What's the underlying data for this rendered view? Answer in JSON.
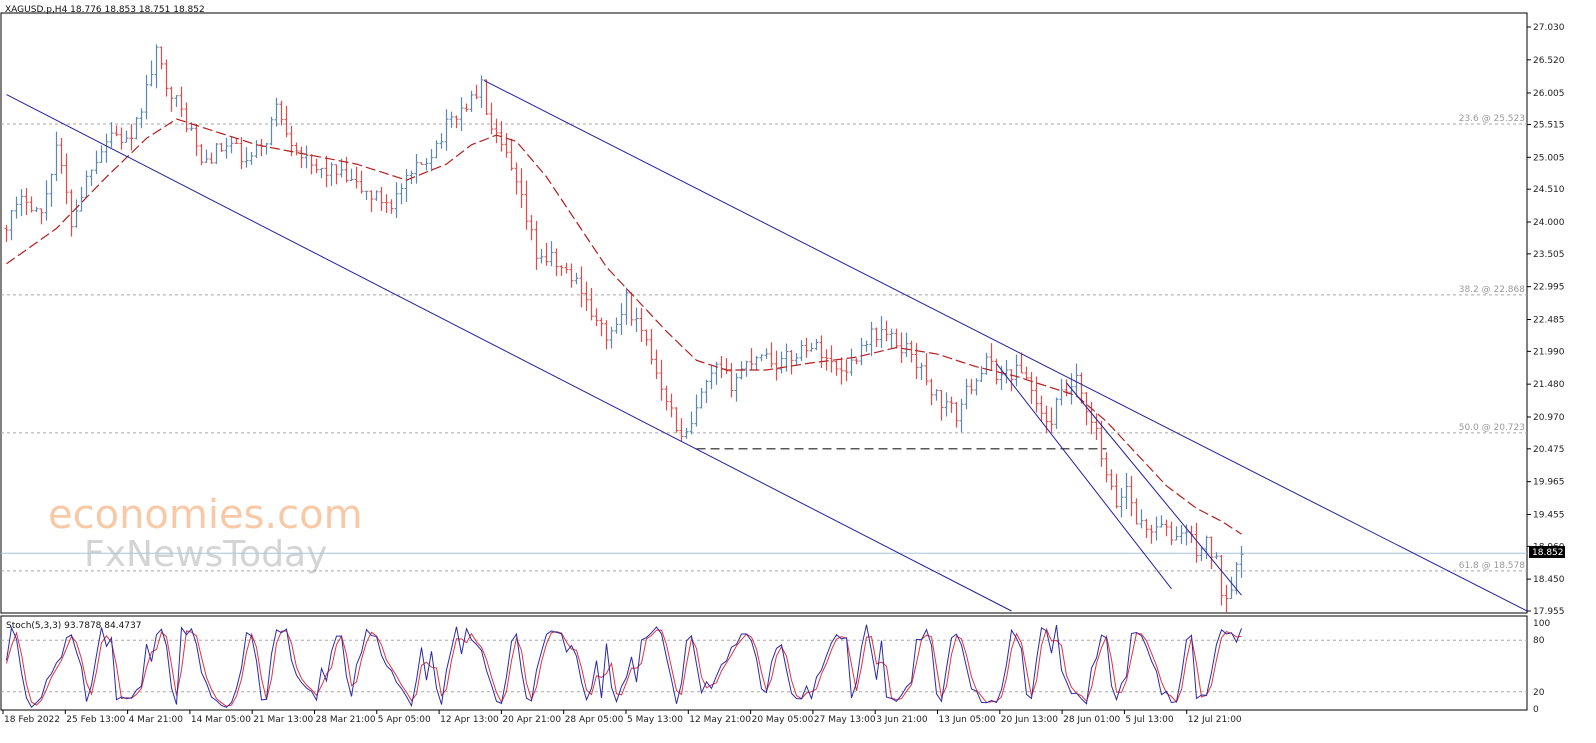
{
  "chart_data": {
    "type": "candlestick",
    "symbol_header": "XAGUSD.p,H4  18.776 18.853 18.751 18.852",
    "symbol": "XAGUSD.p",
    "timeframe": "H4",
    "ohlc_last": {
      "open": 18.776,
      "high": 18.853,
      "low": 18.751,
      "close": 18.852
    },
    "current_price_label": "18.852",
    "current_price": 18.852,
    "price_axis": {
      "ylim": [
        17.955,
        27.03
      ],
      "ticks": [
        "27.030",
        "26.520",
        "26.005",
        "25.515",
        "25.005",
        "24.510",
        "24.000",
        "23.505",
        "22.995",
        "22.485",
        "21.990",
        "21.480",
        "20.970",
        "20.475",
        "19.965",
        "19.455",
        "18.960",
        "18.450",
        "17.955"
      ]
    },
    "time_axis": {
      "ticks": [
        "18 Feb 2022",
        "25 Feb 13:00",
        "4 Mar 21:00",
        "14 Mar 05:00",
        "21 Mar 13:00",
        "28 Mar 21:00",
        "5 Apr 05:00",
        "12 Apr 13:00",
        "20 Apr 21:00",
        "28 Apr 05:00",
        "5 May 13:00",
        "12 May 21:00",
        "20 May 05:00",
        "27 May 13:00",
        "3 Jun 21:00",
        "13 Jun 05:00",
        "20 Jun 13:00",
        "28 Jun 01:00",
        "5 Jul 13:00",
        "12 Jul 21:00"
      ]
    },
    "fibonacci_levels": [
      {
        "label": "23.6 @ 25.523",
        "price": 25.523
      },
      {
        "label": "38.2 @ 22.868",
        "price": 22.868
      },
      {
        "label": "50.0 @ 20.723",
        "price": 20.723
      },
      {
        "label": "61.8 @ 18.578",
        "price": 18.578
      }
    ],
    "support_level": 20.475,
    "price_waypoints": [
      [
        0,
        23.9
      ],
      [
        5,
        24.4
      ],
      [
        8,
        24.1
      ],
      [
        11,
        25.2
      ],
      [
        14,
        24.0
      ],
      [
        18,
        24.9
      ],
      [
        22,
        25.4
      ],
      [
        26,
        25.2
      ],
      [
        28,
        25.8
      ],
      [
        31,
        26.6
      ],
      [
        33,
        26.2
      ],
      [
        36,
        25.7
      ],
      [
        38,
        25.4
      ],
      [
        40,
        24.9
      ],
      [
        43,
        25.1
      ],
      [
        46,
        25.2
      ],
      [
        49,
        24.9
      ],
      [
        53,
        25.3
      ],
      [
        55,
        25.8
      ],
      [
        58,
        25.3
      ],
      [
        62,
        24.8
      ],
      [
        66,
        24.8
      ],
      [
        70,
        24.6
      ],
      [
        74,
        24.4
      ],
      [
        78,
        24.3
      ],
      [
        82,
        24.7
      ],
      [
        86,
        25.1
      ],
      [
        90,
        25.6
      ],
      [
        94,
        25.9
      ],
      [
        96,
        26.1
      ],
      [
        98,
        25.4
      ],
      [
        101,
        25.0
      ],
      [
        104,
        24.3
      ],
      [
        107,
        23.5
      ],
      [
        110,
        23.4
      ],
      [
        113,
        23.2
      ],
      [
        116,
        23.0
      ],
      [
        119,
        22.4
      ],
      [
        122,
        22.2
      ],
      [
        125,
        22.8
      ],
      [
        127,
        22.4
      ],
      [
        130,
        21.9
      ],
      [
        133,
        21.3
      ],
      [
        136,
        20.6
      ],
      [
        138,
        20.8
      ],
      [
        140,
        21.3
      ],
      [
        143,
        21.7
      ],
      [
        146,
        21.5
      ],
      [
        149,
        21.8
      ],
      [
        152,
        22.0
      ],
      [
        155,
        21.8
      ],
      [
        158,
        21.9
      ],
      [
        161,
        22.1
      ],
      [
        164,
        22.0
      ],
      [
        167,
        21.7
      ],
      [
        170,
        21.8
      ],
      [
        173,
        22.2
      ],
      [
        176,
        22.3
      ],
      [
        179,
        22.1
      ],
      [
        182,
        22.0
      ],
      [
        185,
        21.5
      ],
      [
        188,
        21.2
      ],
      [
        191,
        21.0
      ],
      [
        194,
        21.5
      ],
      [
        197,
        21.8
      ],
      [
        200,
        21.6
      ],
      [
        203,
        21.7
      ],
      [
        205,
        21.6
      ],
      [
        207,
        21.2
      ],
      [
        209,
        20.8
      ],
      [
        212,
        21.3
      ],
      [
        215,
        21.5
      ],
      [
        217,
        21.0
      ],
      [
        219,
        20.7
      ],
      [
        221,
        20.0
      ],
      [
        223,
        19.6
      ],
      [
        225,
        19.9
      ],
      [
        227,
        19.4
      ],
      [
        229,
        19.2
      ],
      [
        231,
        19.3
      ],
      [
        234,
        19.1
      ],
      [
        237,
        19.2
      ],
      [
        239,
        18.9
      ],
      [
        241,
        19.0
      ],
      [
        243,
        18.7
      ],
      [
        244,
        18.3
      ],
      [
        245,
        18.2
      ],
      [
        246,
        18.4
      ],
      [
        247,
        18.8
      ]
    ],
    "moving_average_waypoints": [
      [
        0,
        23.35
      ],
      [
        10,
        23.9
      ],
      [
        20,
        24.7
      ],
      [
        28,
        25.3
      ],
      [
        34,
        25.6
      ],
      [
        40,
        25.45
      ],
      [
        50,
        25.2
      ],
      [
        60,
        25.05
      ],
      [
        70,
        24.9
      ],
      [
        80,
        24.65
      ],
      [
        88,
        24.9
      ],
      [
        93,
        25.2
      ],
      [
        98,
        25.35
      ],
      [
        102,
        25.25
      ],
      [
        108,
        24.7
      ],
      [
        114,
        24.0
      ],
      [
        120,
        23.3
      ],
      [
        126,
        22.8
      ],
      [
        132,
        22.3
      ],
      [
        138,
        21.85
      ],
      [
        144,
        21.7
      ],
      [
        152,
        21.7
      ],
      [
        160,
        21.8
      ],
      [
        170,
        21.9
      ],
      [
        178,
        22.05
      ],
      [
        186,
        21.95
      ],
      [
        194,
        21.75
      ],
      [
        202,
        21.6
      ],
      [
        208,
        21.45
      ],
      [
        214,
        21.3
      ],
      [
        220,
        20.9
      ],
      [
        226,
        20.4
      ],
      [
        232,
        19.9
      ],
      [
        238,
        19.55
      ],
      [
        243,
        19.35
      ],
      [
        247,
        19.15
      ]
    ],
    "candle_count": 248,
    "trendlines": [
      {
        "name": "upper-channel",
        "from": [
          95.5,
          26.2
        ],
        "to": [
          308,
          17.955
        ]
      },
      {
        "name": "lower-channel",
        "from": [
          0,
          25.98
        ],
        "to": [
          201,
          17.955
        ]
      },
      {
        "name": "inner-wedge-upper",
        "from": [
          212,
          21.5
        ],
        "to": [
          247,
          18.2
        ]
      },
      {
        "name": "inner-wedge-lower",
        "from": [
          198,
          21.8
        ],
        "to": [
          233,
          18.3
        ]
      }
    ],
    "stochastic": {
      "label": "Stoch(5,3,3) 93.7878 84.4737",
      "main": 93.7878,
      "signal": 84.4737,
      "ylim": [
        0,
        100
      ],
      "levels": [
        20,
        80
      ],
      "ticks": [
        "100",
        "80",
        "20",
        "0"
      ]
    }
  },
  "watermark": {
    "line1": "economies.com",
    "line2": "FxNewsToday"
  },
  "colors": {
    "bull_candle": "#5b87b5",
    "bear_candle": "#e14b4b",
    "moving_average": "#b41f1f",
    "trendline": "#2020a0",
    "fib_line": "#a8a8a8",
    "support_line": "#222222",
    "stoch_main": "#2a2aa8",
    "stoch_signal": "#e0343c",
    "current_price_line": "#a9c5dd"
  }
}
